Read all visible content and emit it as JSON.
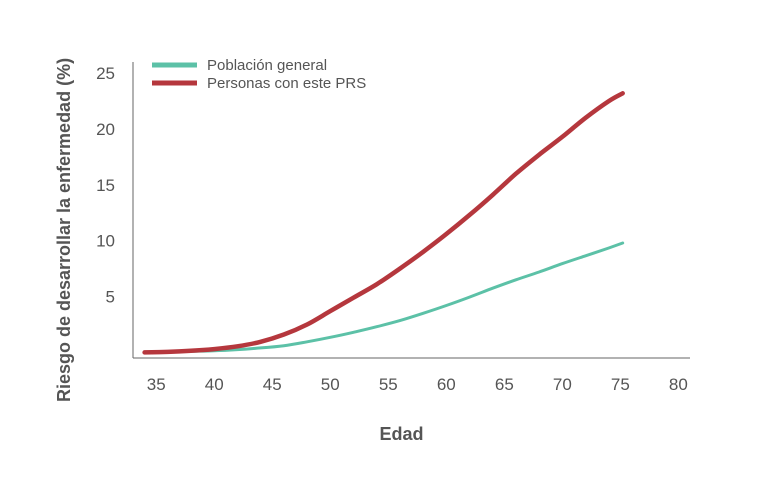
{
  "chart_data": {
    "type": "line",
    "xlabel": "Edad",
    "ylabel": "Riesgo de desarrollar la enfermedad (%)",
    "xlim": [
      33,
      81
    ],
    "ylim": [
      -0.5,
      26
    ],
    "xticks": [
      35,
      40,
      45,
      50,
      55,
      60,
      65,
      70,
      75,
      80
    ],
    "yticks": [
      5,
      10,
      15,
      20,
      25
    ],
    "grid": false,
    "legend_position": "top-left",
    "series": [
      {
        "name": "Población general",
        "color": "#5cc1a7",
        "x": [
          34,
          36,
          38,
          40,
          42,
          44,
          46,
          48,
          50,
          52,
          54,
          56,
          58,
          60,
          62,
          64,
          66,
          68,
          70,
          72,
          74,
          75.2
        ],
        "y": [
          0.0,
          0.05,
          0.1,
          0.15,
          0.25,
          0.4,
          0.6,
          0.95,
          1.35,
          1.8,
          2.3,
          2.85,
          3.5,
          4.2,
          4.95,
          5.75,
          6.5,
          7.2,
          7.95,
          8.65,
          9.35,
          9.8
        ]
      },
      {
        "name": "Personas con este PRS",
        "color": "#b5373d",
        "x": [
          34,
          36,
          38,
          40,
          42,
          44,
          46,
          48,
          50,
          52,
          54,
          56,
          58,
          60,
          62,
          64,
          66,
          68,
          70,
          72,
          74,
          75.2
        ],
        "y": [
          0.0,
          0.05,
          0.15,
          0.3,
          0.55,
          0.95,
          1.6,
          2.5,
          3.7,
          4.9,
          6.1,
          7.5,
          9.0,
          10.6,
          12.3,
          14.1,
          16.0,
          17.7,
          19.3,
          21.0,
          22.5,
          23.2
        ]
      }
    ]
  }
}
